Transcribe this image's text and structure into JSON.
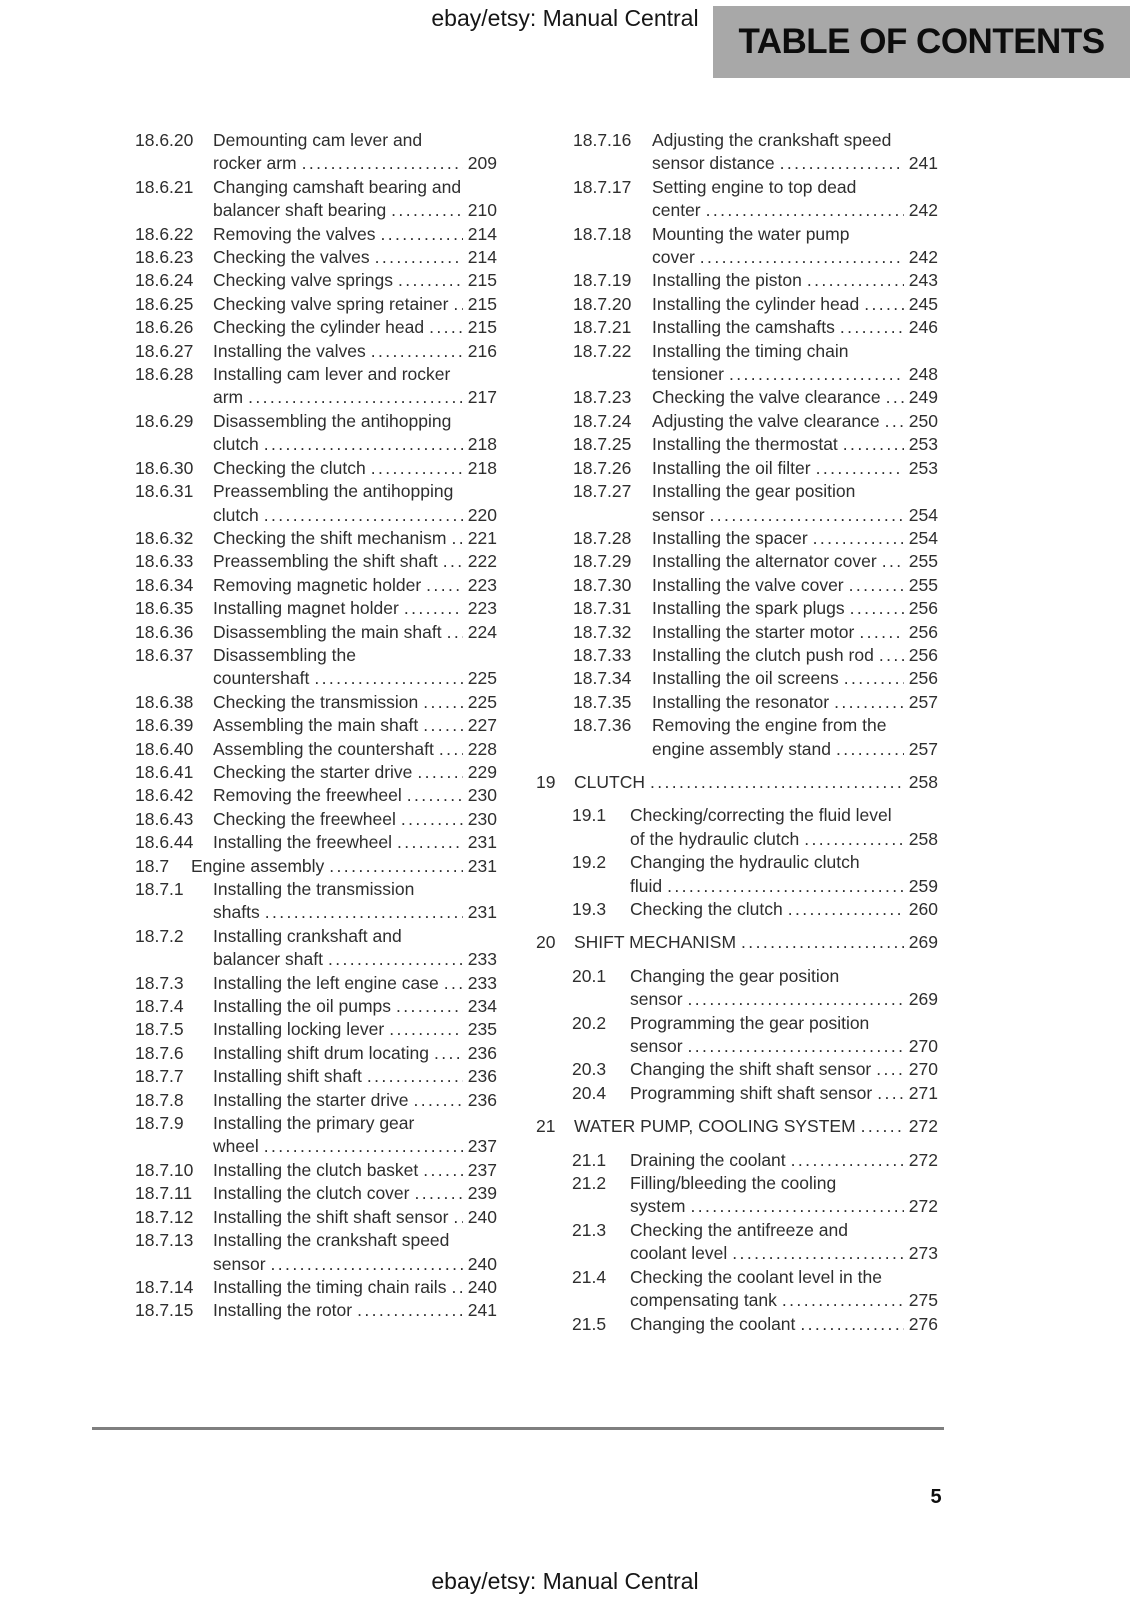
{
  "header": {
    "site_label": "ebay/etsy: Manual Central",
    "banner_title": "TABLE OF CONTENTS"
  },
  "footer": {
    "site_label": "ebay/etsy: Manual Central",
    "page_number": "5"
  },
  "colors": {
    "banner_bg": "#a8a8a8",
    "body_text": "#2e2e2e",
    "rule": "#7f7f7f"
  },
  "toc": {
    "left_column": [
      {
        "num": "18.6.20",
        "level": "s3",
        "lines": [
          "Demounting cam lever and",
          "rocker arm"
        ],
        "page": "209"
      },
      {
        "num": "18.6.21",
        "level": "s3",
        "lines": [
          "Changing camshaft bearing and",
          "balancer shaft bearing"
        ],
        "page": "210"
      },
      {
        "num": "18.6.22",
        "level": "s3",
        "lines": [
          "Removing the valves"
        ],
        "page": "214"
      },
      {
        "num": "18.6.23",
        "level": "s3",
        "lines": [
          "Checking the valves"
        ],
        "page": "214"
      },
      {
        "num": "18.6.24",
        "level": "s3",
        "lines": [
          "Checking valve springs"
        ],
        "page": "215"
      },
      {
        "num": "18.6.25",
        "level": "s3",
        "lines": [
          "Checking valve spring retainer"
        ],
        "page": "215"
      },
      {
        "num": "18.6.26",
        "level": "s3",
        "lines": [
          "Checking the cylinder head"
        ],
        "page": "215"
      },
      {
        "num": "18.6.27",
        "level": "s3",
        "lines": [
          "Installing the valves"
        ],
        "page": "216"
      },
      {
        "num": "18.6.28",
        "level": "s3",
        "lines": [
          "Installing cam lever and rocker",
          "arm"
        ],
        "page": "217"
      },
      {
        "num": "18.6.29",
        "level": "s3",
        "lines": [
          "Disassembling the antihopping",
          "clutch"
        ],
        "page": "218"
      },
      {
        "num": "18.6.30",
        "level": "s3",
        "lines": [
          "Checking the clutch"
        ],
        "page": "218"
      },
      {
        "num": "18.6.31",
        "level": "s3",
        "lines": [
          "Preassembling the antihopping",
          "clutch"
        ],
        "page": "220"
      },
      {
        "num": "18.6.32",
        "level": "s3",
        "lines": [
          "Checking the shift mechanism"
        ],
        "page": "221"
      },
      {
        "num": "18.6.33",
        "level": "s3",
        "lines": [
          "Preassembling the shift shaft"
        ],
        "page": "222"
      },
      {
        "num": "18.6.34",
        "level": "s3",
        "lines": [
          "Removing magnetic holder"
        ],
        "page": "223"
      },
      {
        "num": "18.6.35",
        "level": "s3",
        "lines": [
          "Installing magnet holder"
        ],
        "page": "223"
      },
      {
        "num": "18.6.36",
        "level": "s3",
        "lines": [
          "Disassembling the main shaft"
        ],
        "page": "224"
      },
      {
        "num": "18.6.37",
        "level": "s3",
        "lines": [
          "Disassembling the",
          "countershaft"
        ],
        "page": "225"
      },
      {
        "num": "18.6.38",
        "level": "s3",
        "lines": [
          "Checking the transmission"
        ],
        "page": "225"
      },
      {
        "num": "18.6.39",
        "level": "s3",
        "lines": [
          "Assembling the main shaft"
        ],
        "page": "227"
      },
      {
        "num": "18.6.40",
        "level": "s3",
        "lines": [
          "Assembling the countershaft"
        ],
        "page": "228"
      },
      {
        "num": "18.6.41",
        "level": "s3",
        "lines": [
          "Checking the starter drive"
        ],
        "page": "229"
      },
      {
        "num": "18.6.42",
        "level": "s3",
        "lines": [
          "Removing the freewheel"
        ],
        "page": "230"
      },
      {
        "num": "18.6.43",
        "level": "s3",
        "lines": [
          "Checking the freewheel"
        ],
        "page": "230"
      },
      {
        "num": "18.6.44",
        "level": "s3",
        "lines": [
          "Installing the freewheel"
        ],
        "page": "231"
      },
      {
        "num": "18.7",
        "level": "s2",
        "lines": [
          "Engine assembly"
        ],
        "page": "231"
      },
      {
        "num": "18.7.1",
        "level": "s3",
        "lines": [
          "Installing the transmission",
          "shafts"
        ],
        "page": "231"
      },
      {
        "num": "18.7.2",
        "level": "s3",
        "lines": [
          "Installing crankshaft and",
          "balancer shaft"
        ],
        "page": "233"
      },
      {
        "num": "18.7.3",
        "level": "s3",
        "lines": [
          "Installing the left engine case"
        ],
        "page": "233"
      },
      {
        "num": "18.7.4",
        "level": "s3",
        "lines": [
          "Installing the oil pumps"
        ],
        "page": "234"
      },
      {
        "num": "18.7.5",
        "level": "s3",
        "lines": [
          "Installing locking lever"
        ],
        "page": "235"
      },
      {
        "num": "18.7.6",
        "level": "s3",
        "lines": [
          "Installing shift drum locating"
        ],
        "page": "236"
      },
      {
        "num": "18.7.7",
        "level": "s3",
        "lines": [
          "Installing shift shaft"
        ],
        "page": "236"
      },
      {
        "num": "18.7.8",
        "level": "s3",
        "lines": [
          "Installing the starter drive"
        ],
        "page": "236"
      },
      {
        "num": "18.7.9",
        "level": "s3",
        "lines": [
          "Installing the primary gear",
          "wheel"
        ],
        "page": "237"
      },
      {
        "num": "18.7.10",
        "level": "s3",
        "lines": [
          "Installing the clutch basket"
        ],
        "page": "237"
      },
      {
        "num": "18.7.11",
        "level": "s3",
        "lines": [
          "Installing the clutch cover"
        ],
        "page": "239"
      },
      {
        "num": "18.7.12",
        "level": "s3",
        "lines": [
          "Installing the shift shaft sensor"
        ],
        "page": "240"
      },
      {
        "num": "18.7.13",
        "level": "s3",
        "lines": [
          "Installing the crankshaft speed",
          "sensor"
        ],
        "page": "240"
      },
      {
        "num": "18.7.14",
        "level": "s3",
        "lines": [
          "Installing the timing chain rails"
        ],
        "page": "240"
      },
      {
        "num": "18.7.15",
        "level": "s3",
        "lines": [
          "Installing the rotor"
        ],
        "page": "241"
      }
    ],
    "right_column": [
      {
        "num": "18.7.16",
        "level": "s3",
        "lines": [
          "Adjusting the crankshaft speed",
          "sensor distance"
        ],
        "page": "241"
      },
      {
        "num": "18.7.17",
        "level": "s3",
        "lines": [
          "Setting engine to top dead",
          "center"
        ],
        "page": "242"
      },
      {
        "num": "18.7.18",
        "level": "s3",
        "lines": [
          "Mounting the water pump",
          "cover"
        ],
        "page": "242"
      },
      {
        "num": "18.7.19",
        "level": "s3",
        "lines": [
          "Installing the piston"
        ],
        "page": "243"
      },
      {
        "num": "18.7.20",
        "level": "s3",
        "lines": [
          "Installing the cylinder head"
        ],
        "page": "245"
      },
      {
        "num": "18.7.21",
        "level": "s3",
        "lines": [
          "Installing the camshafts"
        ],
        "page": "246"
      },
      {
        "num": "18.7.22",
        "level": "s3",
        "lines": [
          "Installing the timing chain",
          "tensioner"
        ],
        "page": "248"
      },
      {
        "num": "18.7.23",
        "level": "s3",
        "lines": [
          "Checking the valve clearance"
        ],
        "page": "249"
      },
      {
        "num": "18.7.24",
        "level": "s3",
        "lines": [
          "Adjusting the valve clearance"
        ],
        "page": "250"
      },
      {
        "num": "18.7.25",
        "level": "s3",
        "lines": [
          "Installing the thermostat"
        ],
        "page": "253"
      },
      {
        "num": "18.7.26",
        "level": "s3",
        "lines": [
          "Installing the oil filter"
        ],
        "page": "253"
      },
      {
        "num": "18.7.27",
        "level": "s3",
        "lines": [
          "Installing the gear position",
          "sensor"
        ],
        "page": "254"
      },
      {
        "num": "18.7.28",
        "level": "s3",
        "lines": [
          "Installing the spacer"
        ],
        "page": "254"
      },
      {
        "num": "18.7.29",
        "level": "s3",
        "lines": [
          "Installing the alternator cover"
        ],
        "page": "255"
      },
      {
        "num": "18.7.30",
        "level": "s3",
        "lines": [
          "Installing the valve cover"
        ],
        "page": "255"
      },
      {
        "num": "18.7.31",
        "level": "s3",
        "lines": [
          "Installing the spark plugs"
        ],
        "page": "256"
      },
      {
        "num": "18.7.32",
        "level": "s3",
        "lines": [
          "Installing the starter motor"
        ],
        "page": "256"
      },
      {
        "num": "18.7.33",
        "level": "s3",
        "lines": [
          "Installing the clutch push rod"
        ],
        "page": "256"
      },
      {
        "num": "18.7.34",
        "level": "s3",
        "lines": [
          "Installing the oil screens"
        ],
        "page": "256"
      },
      {
        "num": "18.7.35",
        "level": "s3",
        "lines": [
          "Installing the resonator"
        ],
        "page": "257"
      },
      {
        "num": "18.7.36",
        "level": "s3",
        "lines": [
          "Removing the engine from the",
          "engine assembly stand"
        ],
        "page": "257"
      },
      {
        "num": "19",
        "level": "chapter",
        "lines": [
          "CLUTCH"
        ],
        "page": "258"
      },
      {
        "num": "19.1",
        "level": "s2",
        "lines": [
          "Checking/correcting the fluid level",
          "of the hydraulic clutch"
        ],
        "page": "258"
      },
      {
        "num": "19.2",
        "level": "s2",
        "lines": [
          "Changing the hydraulic clutch",
          "fluid"
        ],
        "page": "259"
      },
      {
        "num": "19.3",
        "level": "s2",
        "lines": [
          "Checking the clutch"
        ],
        "page": "260"
      },
      {
        "num": "20",
        "level": "chapter",
        "lines": [
          "SHIFT MECHANISM"
        ],
        "page": "269"
      },
      {
        "num": "20.1",
        "level": "s2",
        "lines": [
          "Changing the gear position",
          "sensor"
        ],
        "page": "269"
      },
      {
        "num": "20.2",
        "level": "s2",
        "lines": [
          "Programming the gear position",
          "sensor"
        ],
        "page": "270"
      },
      {
        "num": "20.3",
        "level": "s2",
        "lines": [
          "Changing the shift shaft sensor"
        ],
        "page": "270"
      },
      {
        "num": "20.4",
        "level": "s2",
        "lines": [
          "Programming shift shaft sensor"
        ],
        "page": "271"
      },
      {
        "num": "21",
        "level": "chapter",
        "lines": [
          "WATER PUMP, COOLING SYSTEM"
        ],
        "page": "272"
      },
      {
        "num": "21.1",
        "level": "s2",
        "lines": [
          "Draining the coolant"
        ],
        "page": "272"
      },
      {
        "num": "21.2",
        "level": "s2",
        "lines": [
          "Filling/bleeding the cooling",
          "system"
        ],
        "page": "272"
      },
      {
        "num": "21.3",
        "level": "s2",
        "lines": [
          "Checking the antifreeze and",
          "coolant level"
        ],
        "page": "273"
      },
      {
        "num": "21.4",
        "level": "s2",
        "lines": [
          "Checking the coolant level in the",
          "compensating tank"
        ],
        "page": "275"
      },
      {
        "num": "21.5",
        "level": "s2",
        "lines": [
          "Changing the coolant"
        ],
        "page": "276"
      }
    ]
  }
}
